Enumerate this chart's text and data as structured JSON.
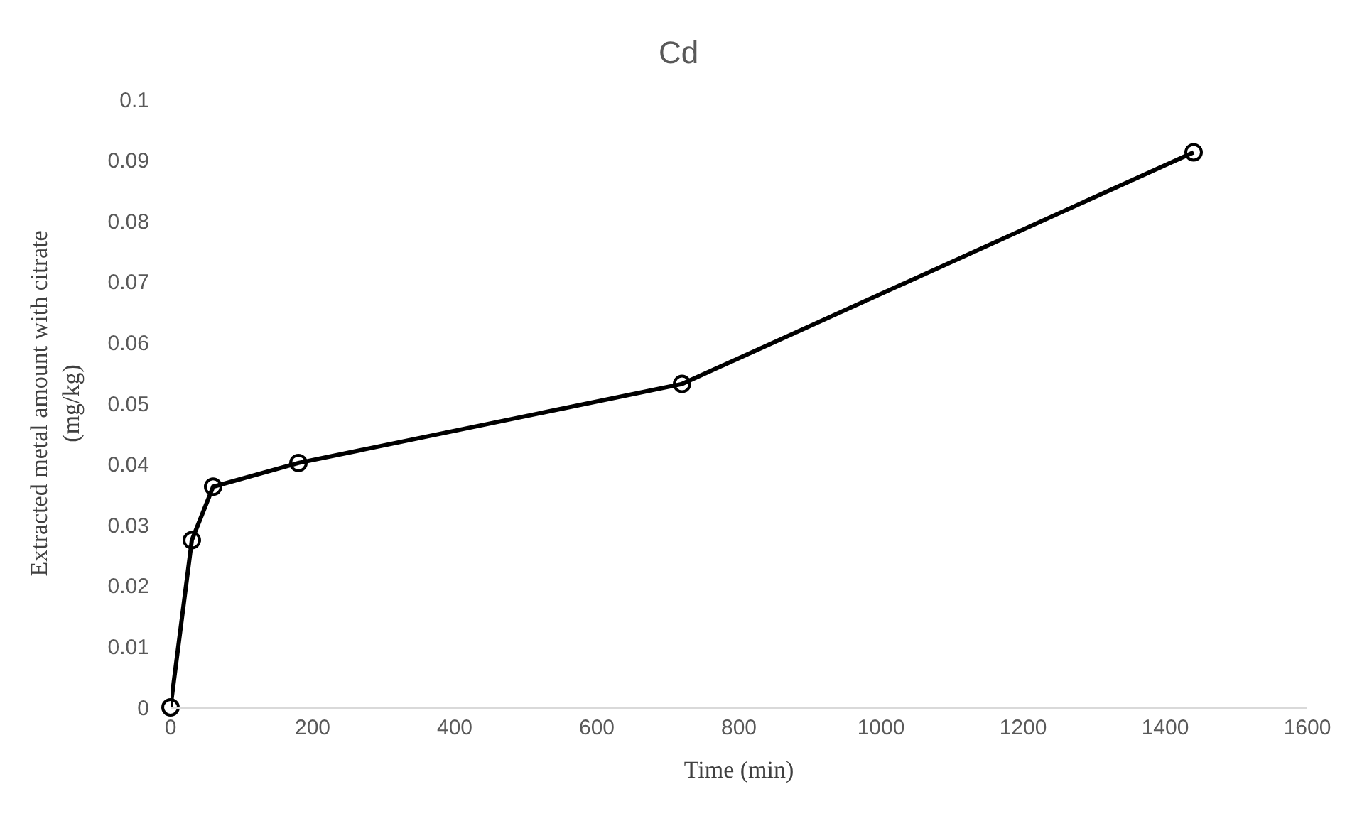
{
  "chart_data": {
    "type": "line",
    "title": "Cd",
    "xlabel": "Time (min)",
    "ylabel": "Extracted metal amount with citrate (mg/kg)",
    "x": [
      0,
      30,
      60,
      180,
      720,
      1440
    ],
    "series": [
      {
        "color": "#000000",
        "values": [
          0,
          0.0275,
          0.0363,
          0.0402,
          0.0532,
          0.0913
        ]
      }
    ],
    "xlim": [
      0,
      1600
    ],
    "xticks": [
      0,
      200,
      400,
      600,
      800,
      1000,
      1200,
      1400,
      1600
    ],
    "ylim": [
      0,
      0.1
    ],
    "yticks": [
      0,
      0.01,
      0.02,
      0.03,
      0.04,
      0.05,
      0.06,
      0.07,
      0.08,
      0.09,
      0.1
    ],
    "marker": "circle",
    "line_style": "solid"
  }
}
